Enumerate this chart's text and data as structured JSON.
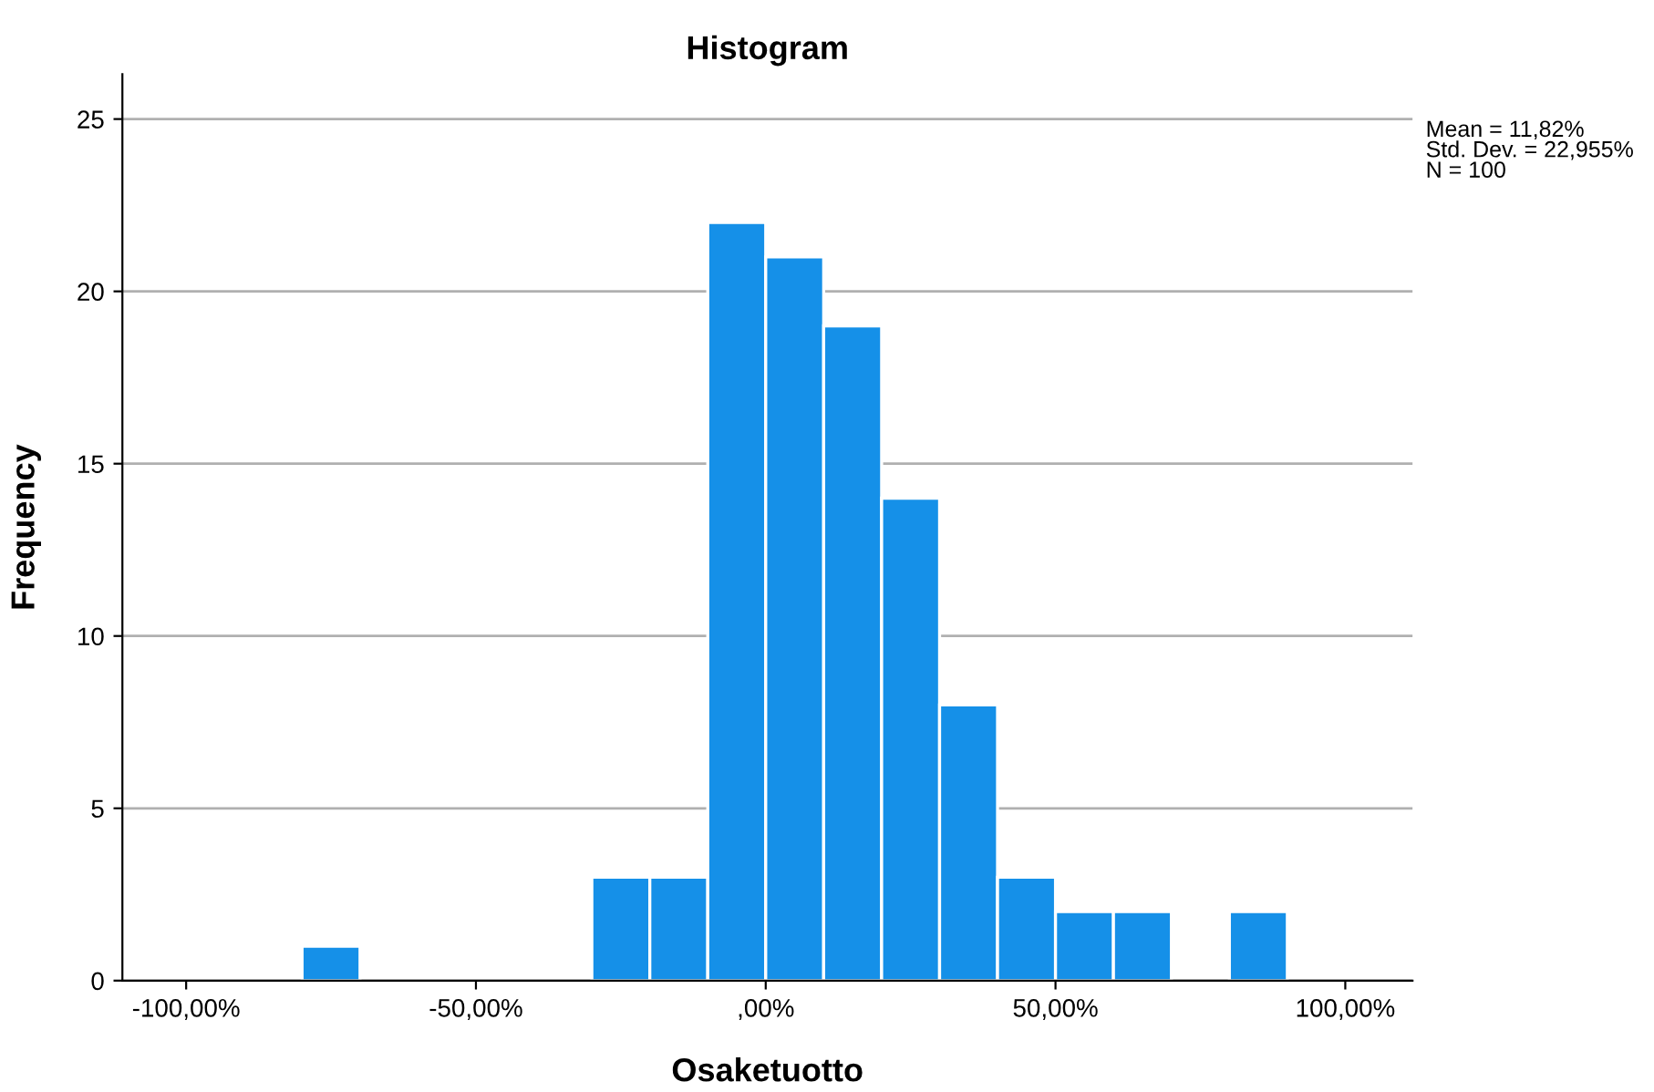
{
  "chart_data": {
    "type": "histogram",
    "title": "Histogram",
    "xlabel": "Osaketuotto",
    "ylabel": "Frequency",
    "bins": [
      -80,
      -70,
      -60,
      -50,
      -40,
      -30,
      -20,
      -10,
      0,
      10,
      20,
      30,
      40,
      50,
      60,
      70,
      80,
      90
    ],
    "values": [
      1,
      0,
      0,
      0,
      0,
      3,
      3,
      22,
      21,
      19,
      14,
      8,
      3,
      2,
      2,
      0,
      2
    ],
    "color": "#1590e8",
    "xlim": [
      -111,
      111.6
    ],
    "xticks": [
      {
        "value": -100,
        "label": "-100,00%"
      },
      {
        "value": -50,
        "label": "-50,00%"
      },
      {
        "value": 0,
        "label": ",00%"
      },
      {
        "value": 50,
        "label": "50,00%"
      },
      {
        "value": 100,
        "label": "100,00%"
      }
    ],
    "ylim": [
      0,
      26.3
    ],
    "yticks": [
      0,
      5,
      10,
      15,
      20,
      25
    ],
    "grid": "y",
    "annotations": [
      "Mean = 11,82%\nStd. Dev. = 22,955%\nN = 100"
    ]
  }
}
